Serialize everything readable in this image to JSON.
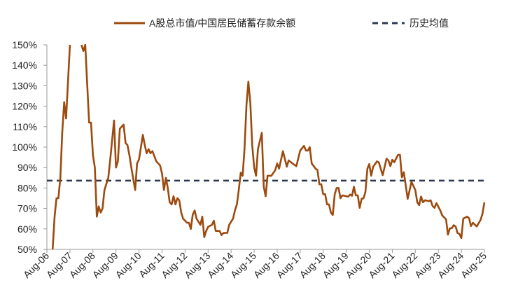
{
  "chart_data": {
    "type": "line",
    "title": "",
    "xlabel": "",
    "ylabel": "",
    "ylim": [
      50,
      150
    ],
    "y_ticks": [
      "50%",
      "60%",
      "70%",
      "80%",
      "90%",
      "100%",
      "110%",
      "120%",
      "130%",
      "140%",
      "150%"
    ],
    "x_ticks": [
      "Aug-06",
      "Aug-07",
      "Aug-08",
      "Aug-09",
      "Aug-10",
      "Aug-11",
      "Aug-12",
      "Aug-13",
      "Aug-14",
      "Aug-15",
      "Aug-16",
      "Aug-17",
      "Aug-18",
      "Aug-19",
      "Aug-20",
      "Aug-21",
      "Aug-22",
      "Aug-23",
      "Aug-24",
      "Aug-25"
    ],
    "xlim": [
      "2006-08",
      "2025-08"
    ],
    "grid": false,
    "legend_placement": "top",
    "colors": {
      "ratio": "#9C4A0E",
      "mean": "#2B3A4F"
    },
    "series": [
      {
        "name": "A股总市值/中国居民储蓄存款余额",
        "style": "solid",
        "points": [
          [
            "2006-11",
            50
          ],
          [
            "2006-12",
            66
          ],
          [
            "2007-01",
            75
          ],
          [
            "2007-02",
            75
          ],
          [
            "2007-03",
            85
          ],
          [
            "2007-04",
            107
          ],
          [
            "2007-05",
            122
          ],
          [
            "2007-06",
            114
          ],
          [
            "2007-08",
            150
          ],
          [
            "2007-10",
            null
          ],
          [
            "2008-02",
            150
          ],
          [
            "2008-03",
            147
          ],
          [
            "2008-04",
            150
          ],
          [
            "2008-06",
            112
          ],
          [
            "2008-07",
            112
          ],
          [
            "2008-08",
            96
          ],
          [
            "2008-09",
            90
          ],
          [
            "2008-10",
            66
          ],
          [
            "2008-11",
            71
          ],
          [
            "2008-12",
            68
          ],
          [
            "2009-01",
            70
          ],
          [
            "2009-02",
            79
          ],
          [
            "2009-04",
            85
          ],
          [
            "2009-05",
            94
          ],
          [
            "2009-07",
            113
          ],
          [
            "2009-08",
            90
          ],
          [
            "2009-09",
            93
          ],
          [
            "2009-10",
            109
          ],
          [
            "2009-12",
            111
          ],
          [
            "2010-01",
            102
          ],
          [
            "2010-02",
            101
          ],
          [
            "2010-03",
            96
          ],
          [
            "2010-04",
            90
          ],
          [
            "2010-06",
            79
          ],
          [
            "2010-07",
            92
          ],
          [
            "2010-08",
            94
          ],
          [
            "2010-10",
            106
          ],
          [
            "2010-11",
            101
          ],
          [
            "2010-12",
            97
          ],
          [
            "2011-01",
            99
          ],
          [
            "2011-02",
            97
          ],
          [
            "2011-03",
            98
          ],
          [
            "2011-05",
            93
          ],
          [
            "2011-07",
            91
          ],
          [
            "2011-08",
            87
          ],
          [
            "2011-09",
            79
          ],
          [
            "2011-10",
            85
          ],
          [
            "2011-11",
            80
          ],
          [
            "2011-12",
            73
          ],
          [
            "2012-01",
            72
          ],
          [
            "2012-02",
            76
          ],
          [
            "2012-03",
            72
          ],
          [
            "2012-04",
            75
          ],
          [
            "2012-05",
            74
          ],
          [
            "2012-06",
            68
          ],
          [
            "2012-07",
            65
          ],
          [
            "2012-09",
            63
          ],
          [
            "2012-10",
            63
          ],
          [
            "2012-11",
            60
          ],
          [
            "2012-12",
            67
          ],
          [
            "2013-01",
            69
          ],
          [
            "2013-02",
            65
          ],
          [
            "2013-04",
            62
          ],
          [
            "2013-05",
            66
          ],
          [
            "2013-06",
            56
          ],
          [
            "2013-07",
            59
          ],
          [
            "2013-08",
            61
          ],
          [
            "2013-10",
            62
          ],
          [
            "2013-11",
            64
          ],
          [
            "2013-12",
            59
          ],
          [
            "2014-02",
            59
          ],
          [
            "2014-03",
            57
          ],
          [
            "2014-04",
            58
          ],
          [
            "2014-05",
            58
          ],
          [
            "2014-06",
            58
          ],
          [
            "2014-07",
            62
          ],
          [
            "2014-09",
            65
          ],
          [
            "2014-10",
            69
          ],
          [
            "2014-11",
            72
          ],
          [
            "2014-12",
            79
          ],
          [
            "2015-01",
            87.5
          ],
          [
            "2015-02",
            86
          ],
          [
            "2015-03",
            99
          ],
          [
            "2015-04",
            120.5
          ],
          [
            "2015-05",
            132
          ],
          [
            "2015-06",
            121.7
          ],
          [
            "2015-07",
            101
          ],
          [
            "2015-08",
            90
          ],
          [
            "2015-09",
            86
          ],
          [
            "2015-10",
            99
          ],
          [
            "2015-12",
            107
          ],
          [
            "2016-01",
            80.6
          ],
          [
            "2016-02",
            76
          ],
          [
            "2016-03",
            86
          ],
          [
            "2016-05",
            86
          ],
          [
            "2016-07",
            88.7
          ],
          [
            "2016-08",
            92
          ],
          [
            "2016-09",
            89.5
          ],
          [
            "2016-11",
            98
          ],
          [
            "2017-01",
            90.4
          ],
          [
            "2017-02",
            93.5
          ],
          [
            "2017-04",
            92
          ],
          [
            "2017-06",
            90.7
          ],
          [
            "2017-08",
            98.3
          ],
          [
            "2017-10",
            100.6
          ],
          [
            "2017-11",
            98.3
          ],
          [
            "2017-12",
            98.3
          ],
          [
            "2018-01",
            100
          ],
          [
            "2018-02",
            92
          ],
          [
            "2018-04",
            89.5
          ],
          [
            "2018-05",
            88.8
          ],
          [
            "2018-06",
            81.8
          ],
          [
            "2018-07",
            81.8
          ],
          [
            "2018-08",
            77
          ],
          [
            "2018-09",
            77
          ],
          [
            "2018-10",
            72
          ],
          [
            "2018-11",
            72
          ],
          [
            "2018-12",
            68
          ],
          [
            "2019-01",
            66.8
          ],
          [
            "2019-02",
            77
          ],
          [
            "2019-03",
            80
          ],
          [
            "2019-04",
            80
          ],
          [
            "2019-05",
            75
          ],
          [
            "2019-06",
            76.4
          ],
          [
            "2019-09",
            75.8
          ],
          [
            "2019-10",
            76.8
          ],
          [
            "2019-11",
            76.2
          ],
          [
            "2019-12",
            80.6
          ],
          [
            "2020-01",
            76.4
          ],
          [
            "2020-02",
            76.4
          ],
          [
            "2020-03",
            70.3
          ],
          [
            "2020-04",
            74.7
          ],
          [
            "2020-05",
            75
          ],
          [
            "2020-06",
            78
          ],
          [
            "2020-07",
            89.4
          ],
          [
            "2020-08",
            91.7
          ],
          [
            "2020-09",
            86
          ],
          [
            "2020-10",
            90.3
          ],
          [
            "2020-12",
            93
          ],
          [
            "2021-01",
            92.5
          ],
          [
            "2021-03",
            86.3
          ],
          [
            "2021-05",
            94.3
          ],
          [
            "2021-06",
            93.5
          ],
          [
            "2021-07",
            90.7
          ],
          [
            "2021-08",
            93.8
          ],
          [
            "2021-09",
            92.6
          ],
          [
            "2021-11",
            96.2
          ],
          [
            "2021-12",
            96.2
          ],
          [
            "2022-01",
            85.2
          ],
          [
            "2022-02",
            87.7
          ],
          [
            "2022-04",
            74.7
          ],
          [
            "2022-06",
            83
          ],
          [
            "2022-08",
            79
          ],
          [
            "2022-09",
            73
          ],
          [
            "2022-10",
            71.6
          ],
          [
            "2022-11",
            75.8
          ],
          [
            "2022-12",
            73
          ],
          [
            "2023-01",
            74
          ],
          [
            "2023-03",
            73.6
          ],
          [
            "2023-04",
            74
          ],
          [
            "2023-05",
            71.2
          ],
          [
            "2023-06",
            70.3
          ],
          [
            "2023-07",
            72.6
          ],
          [
            "2023-09",
            69
          ],
          [
            "2023-10",
            66.6
          ],
          [
            "2023-12",
            64.7
          ],
          [
            "2024-01",
            57.2
          ],
          [
            "2024-02",
            60.3
          ],
          [
            "2024-03",
            60.3
          ],
          [
            "2024-04",
            61.8
          ],
          [
            "2024-05",
            61.2
          ],
          [
            "2024-06",
            58
          ],
          [
            "2024-07",
            57.5
          ],
          [
            "2024-08",
            55.5
          ],
          [
            "2024-09",
            65
          ],
          [
            "2024-11",
            66
          ],
          [
            "2024-12",
            65.2
          ],
          [
            "2025-01",
            61.4
          ],
          [
            "2025-02",
            63
          ],
          [
            "2025-04",
            61.2
          ],
          [
            "2025-06",
            64.4
          ],
          [
            "2025-07",
            67.5
          ],
          [
            "2025-08",
            73
          ]
        ]
      },
      {
        "name": "历史均值",
        "style": "dashed",
        "value": 83.6,
        "range": [
          "2006-08",
          "2025-08"
        ]
      }
    ]
  }
}
